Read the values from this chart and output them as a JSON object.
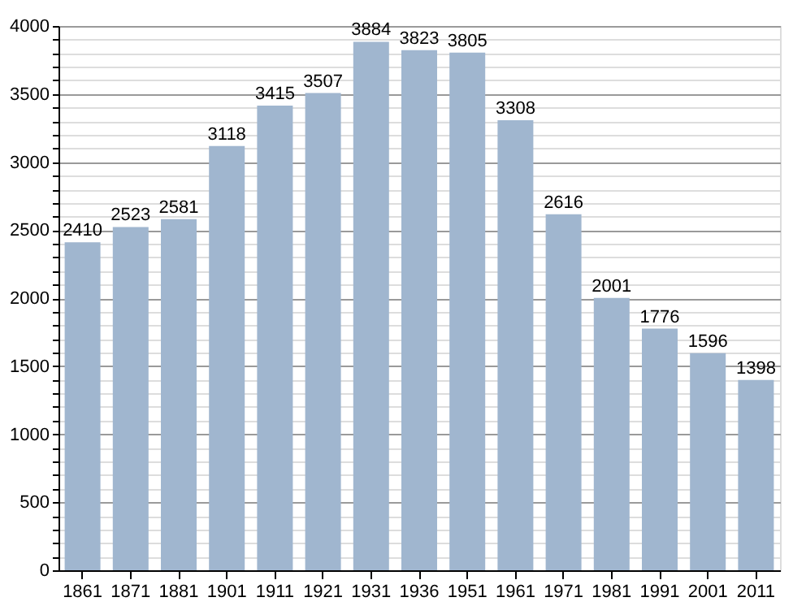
{
  "chart_data": {
    "type": "bar",
    "categories": [
      "1861",
      "1871",
      "1881",
      "1901",
      "1911",
      "1921",
      "1931",
      "1936",
      "1951",
      "1961",
      "1971",
      "1981",
      "1991",
      "2001",
      "2011"
    ],
    "values": [
      2410,
      2523,
      2581,
      3118,
      3415,
      3507,
      3884,
      3823,
      3805,
      3308,
      2616,
      2001,
      1776,
      1596,
      1398
    ],
    "color": "#a0b6cf",
    "data_labels": true,
    "grid": "y",
    "ylim": [
      0,
      4000
    ],
    "yticks": [
      0,
      {
        "value": 100,
        "label": null
      },
      {
        "value": 200,
        "label": null
      },
      {
        "value": 300,
        "label": null
      },
      {
        "value": 400,
        "label": null
      },
      500,
      {
        "value": 600,
        "label": null
      },
      {
        "value": 700,
        "label": null
      },
      {
        "value": 800,
        "label": null
      },
      {
        "value": 900,
        "label": null
      },
      1000,
      {
        "value": 1100,
        "label": null
      },
      {
        "value": 1200,
        "label": null
      },
      {
        "value": 1300,
        "label": null
      },
      {
        "value": 1400,
        "label": null
      },
      1500,
      {
        "value": 1600,
        "label": null
      },
      {
        "value": 1700,
        "label": null
      },
      {
        "value": 1800,
        "label": null
      },
      {
        "value": 1900,
        "label": null
      },
      2000,
      {
        "value": 2100,
        "label": null
      },
      {
        "value": 2200,
        "label": null
      },
      {
        "value": 2300,
        "label": null
      },
      {
        "value": 2400,
        "label": null
      },
      2500,
      {
        "value": 2600,
        "label": null
      },
      {
        "value": 2700,
        "label": null
      },
      {
        "value": 2800,
        "label": null
      },
      {
        "value": 2900,
        "label": null
      },
      3000,
      {
        "value": 3100,
        "label": null
      },
      {
        "value": 3200,
        "label": null
      },
      {
        "value": 3300,
        "label": null
      },
      {
        "value": 3400,
        "label": null
      },
      3500,
      {
        "value": 3600,
        "label": null
      },
      {
        "value": 3700,
        "label": null
      },
      {
        "value": 3800,
        "label": null
      },
      {
        "value": 3900,
        "label": null
      },
      4000
    ]
  }
}
